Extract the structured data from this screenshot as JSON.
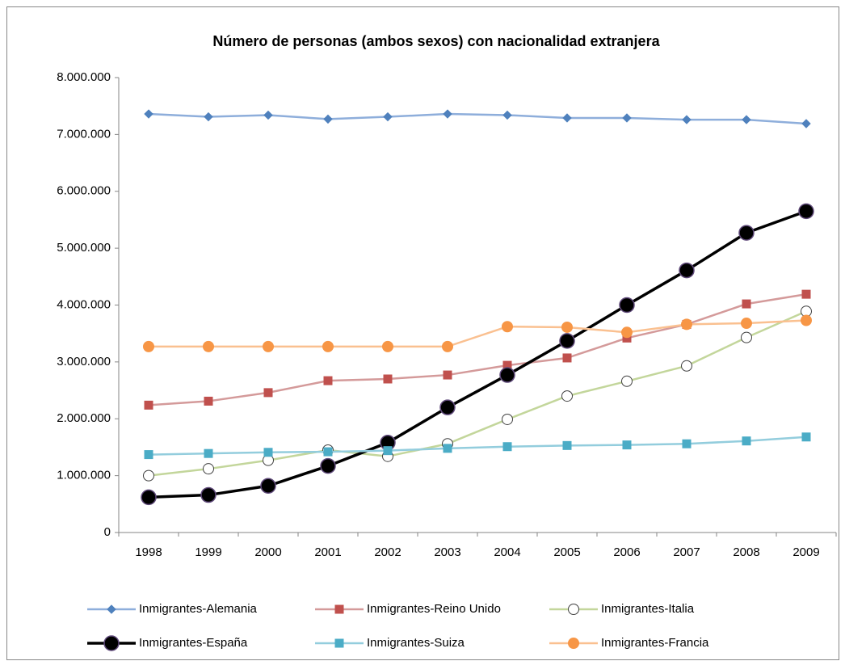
{
  "chart_data": {
    "type": "line",
    "title": "Número de personas (ambos sexos)  con nacionalidad extranjera",
    "categories": [
      "1998",
      "1999",
      "2000",
      "2001",
      "2002",
      "2003",
      "2004",
      "2005",
      "2006",
      "2007",
      "2008",
      "2009"
    ],
    "ylim": [
      0,
      8000000
    ],
    "yticks": [
      0,
      {
        "value": 1000000,
        "label": "1.000.000"
      },
      {
        "value": 2000000,
        "label": "2.000.000"
      },
      {
        "value": 3000000,
        "label": "3.000.000"
      },
      {
        "value": 4000000,
        "label": "4.000.000"
      },
      {
        "value": 5000000,
        "label": "5.000.000"
      },
      {
        "value": 6000000,
        "label": "6.000.000"
      },
      {
        "value": 7000000,
        "label": "7.000.000"
      },
      {
        "value": 8000000,
        "label": "8.000.000"
      }
    ],
    "grid": false,
    "legend": "bottom",
    "series": [
      {
        "name": "Inmigrantes-Alemania",
        "color": "#8eaedb",
        "marker": "diamond",
        "marker_color": "#4f81bd",
        "values": [
          7360000,
          7310000,
          7340000,
          7270000,
          7310000,
          7360000,
          7340000,
          7290000,
          7290000,
          7260000,
          7260000,
          7190000
        ]
      },
      {
        "name": "Inmigrantes-Reino Unido",
        "color": "#d49a9a",
        "marker": "square",
        "marker_color": "#c0504d",
        "values": [
          2240000,
          2310000,
          2460000,
          2670000,
          2700000,
          2770000,
          2940000,
          3070000,
          3420000,
          3660000,
          4020000,
          4190000
        ]
      },
      {
        "name": "Inmigrantes-Italia",
        "color": "#c3d69b",
        "marker": "circle",
        "marker_color": "#ffffff",
        "values": [
          1000000,
          1120000,
          1270000,
          1450000,
          1340000,
          1560000,
          1990000,
          2400000,
          2660000,
          2930000,
          3430000,
          3890000
        ]
      },
      {
        "name": "Inmigrantes-España",
        "color": "#000000",
        "marker": "bigcircle",
        "marker_color": "#000000",
        "values": [
          620000,
          660000,
          820000,
          1170000,
          1580000,
          2200000,
          2770000,
          3370000,
          4000000,
          4610000,
          5270000,
          5650000
        ]
      },
      {
        "name": "Inmigrantes-Suiza",
        "color": "#93cddd",
        "marker": "square",
        "marker_color": "#4bacc6",
        "values": [
          1370000,
          1390000,
          1410000,
          1420000,
          1440000,
          1480000,
          1510000,
          1530000,
          1540000,
          1560000,
          1610000,
          1680000
        ]
      },
      {
        "name": "Inmigrantes-Francia",
        "color": "#fac090",
        "marker": "circle",
        "marker_color": "#f79646",
        "values": [
          3270000,
          3270000,
          3270000,
          3270000,
          3270000,
          3270000,
          3620000,
          3610000,
          3520000,
          3660000,
          3680000,
          3730000
        ]
      }
    ]
  }
}
